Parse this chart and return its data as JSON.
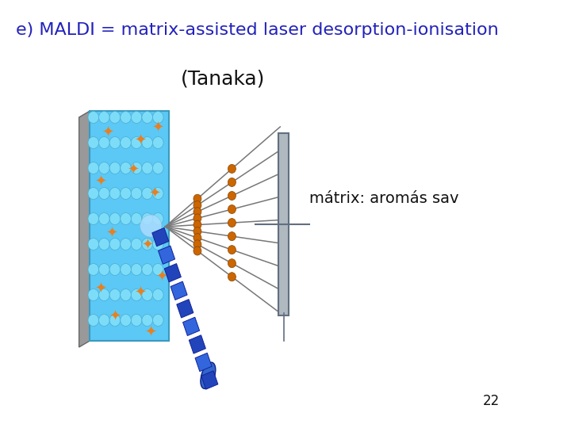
{
  "title": "e) MALDI = matrix-assisted laser desorption-ionisation",
  "subtitle": "(Tanaka)",
  "label": "mátrix: aromás sav",
  "page_number": "22",
  "title_color": "#2222bb",
  "subtitle_color": "#111111",
  "label_color": "#111111",
  "page_color": "#111111",
  "bg_color": "#ffffff",
  "title_fontsize": 16,
  "subtitle_fontsize": 18,
  "label_fontsize": 14,
  "page_fontsize": 12
}
